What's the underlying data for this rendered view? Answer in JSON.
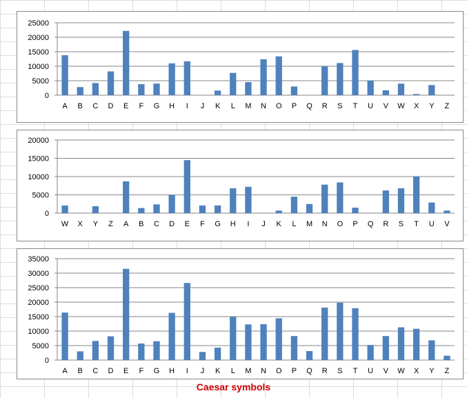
{
  "caption": {
    "text": "Caesar symbols",
    "color": "#d00000"
  },
  "bar_color": "#4f81bd",
  "chart_data": [
    {
      "type": "bar",
      "categories": [
        "A",
        "B",
        "C",
        "D",
        "E",
        "F",
        "G",
        "H",
        "I",
        "J",
        "K",
        "L",
        "M",
        "N",
        "O",
        "P",
        "Q",
        "R",
        "S",
        "T",
        "U",
        "V",
        "W",
        "X",
        "Y",
        "Z"
      ],
      "values": [
        13800,
        2800,
        4200,
        8200,
        22200,
        3800,
        4000,
        11000,
        11700,
        0,
        1600,
        7700,
        4500,
        12400,
        13400,
        3000,
        0,
        10000,
        11100,
        15600,
        5100,
        1700,
        4000,
        400,
        3500,
        0
      ],
      "ylim": [
        0,
        25000
      ],
      "yticks": [
        0,
        5000,
        10000,
        15000,
        20000,
        25000
      ],
      "title": "",
      "xlabel": "",
      "ylabel": "",
      "grid": true,
      "legend": "none"
    },
    {
      "type": "bar",
      "categories": [
        "W",
        "X",
        "Y",
        "Z",
        "A",
        "B",
        "C",
        "D",
        "E",
        "F",
        "G",
        "H",
        "I",
        "J",
        "K",
        "L",
        "M",
        "N",
        "O",
        "P",
        "Q",
        "R",
        "S",
        "T",
        "U",
        "V"
      ],
      "values": [
        2100,
        0,
        1900,
        0,
        8700,
        1400,
        2400,
        4900,
        14500,
        2100,
        2100,
        6800,
        7200,
        0,
        700,
        4500,
        2500,
        7800,
        8400,
        1500,
        0,
        6200,
        6800,
        10000,
        2900,
        700
      ],
      "ylim": [
        0,
        20000
      ],
      "yticks": [
        0,
        5000,
        10000,
        15000,
        20000
      ],
      "title": "",
      "xlabel": "",
      "ylabel": "",
      "grid": true,
      "legend": "none"
    },
    {
      "type": "bar",
      "categories": [
        "A",
        "B",
        "C",
        "D",
        "E",
        "F",
        "G",
        "H",
        "I",
        "J",
        "K",
        "L",
        "M",
        "N",
        "O",
        "P",
        "Q",
        "R",
        "S",
        "T",
        "U",
        "V",
        "W",
        "X",
        "Y",
        "Z"
      ],
      "values": [
        16400,
        3000,
        6600,
        8200,
        31500,
        5700,
        6500,
        16300,
        26600,
        2800,
        4300,
        14900,
        12300,
        12400,
        14400,
        8300,
        3100,
        18100,
        19800,
        17900,
        5200,
        8300,
        11300,
        10800,
        6800,
        1500
      ],
      "ylim": [
        0,
        35000
      ],
      "yticks": [
        0,
        5000,
        10000,
        15000,
        20000,
        25000,
        30000,
        35000
      ],
      "title": "",
      "xlabel": "",
      "ylabel": "",
      "grid": true,
      "legend": "none"
    }
  ]
}
